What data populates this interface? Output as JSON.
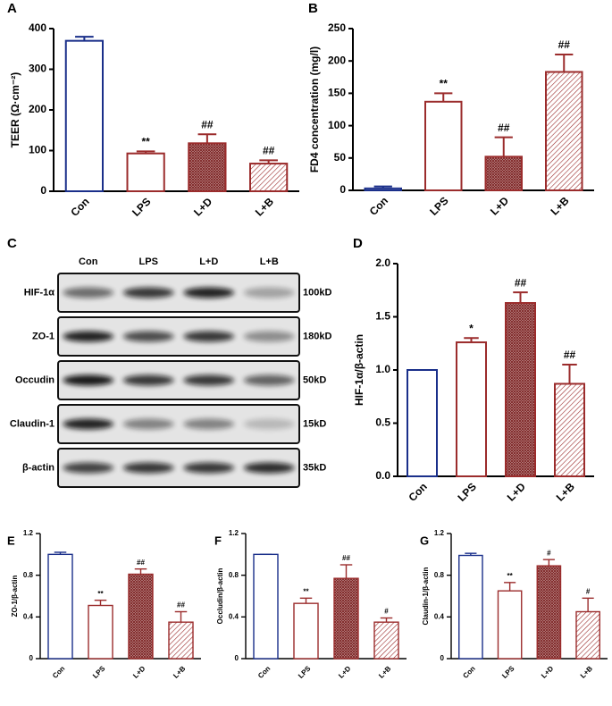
{
  "chart_data": [
    {
      "type": "bar",
      "panel": "A",
      "ylabel": "TEER (Ω·cm⁻²)",
      "categories": [
        "Con",
        "LPS",
        "L+D",
        "L+B"
      ],
      "values": [
        370,
        93,
        118,
        68
      ],
      "errors": [
        10,
        5,
        22,
        8
      ],
      "annotations": [
        null,
        "**",
        "##",
        "##"
      ],
      "colors": [
        "#1a2f8a",
        "#9b2c2c",
        "#9b2c2c",
        "#9b2c2c"
      ],
      "patterns": [
        "none",
        "none",
        "crosshatch",
        "diagonal"
      ],
      "ylim": [
        0,
        400
      ],
      "yticks": [
        0,
        100,
        200,
        300,
        400
      ]
    },
    {
      "type": "bar",
      "panel": "B",
      "ylabel": "FD4 concentration (mg/l)",
      "categories": [
        "Con",
        "LPS",
        "L+D",
        "L+B"
      ],
      "values": [
        3,
        137,
        52,
        183
      ],
      "errors": [
        3,
        13,
        30,
        27
      ],
      "annotations": [
        null,
        "**",
        "##",
        "##"
      ],
      "colors": [
        "#1a2f8a",
        "#9b2c2c",
        "#9b2c2c",
        "#9b2c2c"
      ],
      "patterns": [
        "none",
        "none",
        "crosshatch",
        "diagonal"
      ],
      "ylim": [
        0,
        250
      ],
      "yticks": [
        0,
        50,
        100,
        150,
        200,
        250
      ]
    },
    {
      "type": "blot",
      "panel": "C",
      "lanes": [
        "Con",
        "LPS",
        "L+D",
        "L+B"
      ],
      "proteins": [
        "HIF-1α",
        "ZO-1",
        "Occudin",
        "Claudin-1",
        "β-actin"
      ],
      "sizes": [
        "100kD",
        "180kD",
        "50kD",
        "15kD",
        "35kD"
      ]
    },
    {
      "type": "bar",
      "panel": "D",
      "ylabel": "HIF-1α/β-actin",
      "categories": [
        "Con",
        "LPS",
        "L+D",
        "L+B"
      ],
      "values": [
        1.0,
        1.26,
        1.63,
        0.87
      ],
      "errors": [
        0,
        0.04,
        0.1,
        0.18
      ],
      "annotations": [
        null,
        "*",
        "##",
        "##"
      ],
      "colors": [
        "#1a2f8a",
        "#9b2c2c",
        "#9b2c2c",
        "#9b2c2c"
      ],
      "patterns": [
        "none",
        "none",
        "crosshatch",
        "diagonal"
      ],
      "ylim": [
        0,
        2
      ],
      "yticks": [
        {
          "value": 0,
          "label": "0.0"
        },
        0.5,
        {
          "value": 1,
          "label": "1.0"
        },
        1.5,
        {
          "value": 2,
          "label": "2.0"
        }
      ]
    },
    {
      "type": "bar",
      "panel": "E",
      "ylabel": "ZO-1/β-actin",
      "categories": [
        "Con",
        "LPS",
        "L+D",
        "L+B"
      ],
      "values": [
        1.0,
        0.51,
        0.81,
        0.35
      ],
      "errors": [
        0.02,
        0.05,
        0.05,
        0.1
      ],
      "annotations": [
        null,
        "**",
        "##",
        "##"
      ],
      "colors": [
        "#1a2f8a",
        "#9b2c2c",
        "#9b2c2c",
        "#9b2c2c"
      ],
      "patterns": [
        "none",
        "none",
        "crosshatch",
        "diagonal"
      ],
      "ylim": [
        0,
        1.2
      ],
      "yticks": [
        0,
        0.4,
        0.8,
        1.2
      ]
    },
    {
      "type": "bar",
      "panel": "F",
      "ylabel": "Occludin/β-actin",
      "categories": [
        "Con",
        "LPS",
        "L+D",
        "L+B"
      ],
      "values": [
        1.0,
        0.53,
        0.77,
        0.35
      ],
      "errors": [
        0,
        0.05,
        0.13,
        0.04
      ],
      "annotations": [
        null,
        "**",
        "##",
        "#"
      ],
      "colors": [
        "#1a2f8a",
        "#9b2c2c",
        "#9b2c2c",
        "#9b2c2c"
      ],
      "patterns": [
        "none",
        "none",
        "crosshatch",
        "diagonal"
      ],
      "ylim": [
        0,
        1.2
      ],
      "yticks": [
        0,
        0.4,
        0.8,
        1.2
      ]
    },
    {
      "type": "bar",
      "panel": "G",
      "ylabel": "Claudin-1/β-actin",
      "categories": [
        "Con",
        "LPS",
        "L+D",
        "L+B"
      ],
      "values": [
        0.99,
        0.65,
        0.89,
        0.45
      ],
      "errors": [
        0.02,
        0.08,
        0.06,
        0.13
      ],
      "annotations": [
        null,
        "**",
        "#",
        "#"
      ],
      "colors": [
        "#1a2f8a",
        "#9b2c2c",
        "#9b2c2c",
        "#9b2c2c"
      ],
      "patterns": [
        "none",
        "none",
        "crosshatch",
        "diagonal"
      ],
      "ylim": [
        0,
        1.2
      ],
      "yticks": [
        0,
        0.4,
        0.8,
        1.2
      ]
    }
  ]
}
